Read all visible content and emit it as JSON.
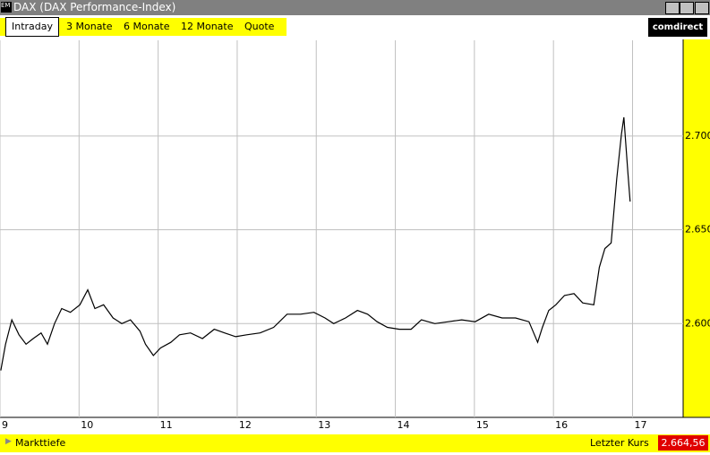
{
  "window": {
    "title": "DAX (DAX Performance-Index)",
    "logo": "comdirect"
  },
  "tabs": [
    "Intraday",
    "3 Monate",
    "6 Monate",
    "12 Monate",
    "Quote"
  ],
  "chart_data": {
    "type": "line",
    "color": "#000000",
    "grid": true,
    "x": [
      9.01,
      9.07,
      9.15,
      9.24,
      9.33,
      9.42,
      9.52,
      9.6,
      9.69,
      9.78,
      9.89,
      10.01,
      10.11,
      10.2,
      10.31,
      10.43,
      10.54,
      10.65,
      10.77,
      10.84,
      10.94,
      11.03,
      11.16,
      11.27,
      11.41,
      11.56,
      11.71,
      11.84,
      11.98,
      12.12,
      12.29,
      12.46,
      12.63,
      12.8,
      12.97,
      13.11,
      13.22,
      13.37,
      13.52,
      13.65,
      13.77,
      13.9,
      14.05,
      14.2,
      14.33,
      14.5,
      14.67,
      14.84,
      15.01,
      15.18,
      15.35,
      15.52,
      15.69,
      15.8,
      15.86,
      15.94,
      16.03,
      16.14,
      16.26,
      16.37,
      16.51,
      16.58,
      16.65,
      16.73,
      16.8,
      16.86,
      16.89,
      16.94,
      16.97
    ],
    "values": [
      2575,
      2589,
      2602,
      2594,
      2589,
      2592,
      2595,
      2589,
      2600,
      2608,
      2606,
      2610,
      2618,
      2608,
      2610,
      2603,
      2600,
      2602,
      2596,
      2589,
      2583,
      2587,
      2590,
      2594,
      2595,
      2592,
      2597,
      2595,
      2593,
      2594,
      2595,
      2598,
      2605,
      2605,
      2606,
      2603,
      2600,
      2603,
      2607,
      2605,
      2601,
      2598,
      2597,
      2597,
      2602,
      2600,
      2601,
      2602,
      2601,
      2605,
      2603,
      2603,
      2601,
      2590,
      2598,
      2607,
      2610,
      2615,
      2616,
      2611,
      2610,
      2630,
      2640,
      2643,
      2677,
      2701,
      2710,
      2681,
      2665
    ],
    "xlim": [
      9,
      17.64
    ],
    "xticks": [
      9,
      10,
      11,
      12,
      13,
      14,
      15,
      16,
      17
    ],
    "ylim": [
      2550,
      2751
    ],
    "yticks": [
      {
        "value": 2600,
        "label": "2.600"
      },
      {
        "value": 2650,
        "label": "2.650"
      },
      {
        "value": 2700,
        "label": "2.700"
      }
    ]
  },
  "footer": {
    "left": "Markttiefe",
    "right_label": "Letzter Kurs",
    "last_price": "2.664,56"
  }
}
